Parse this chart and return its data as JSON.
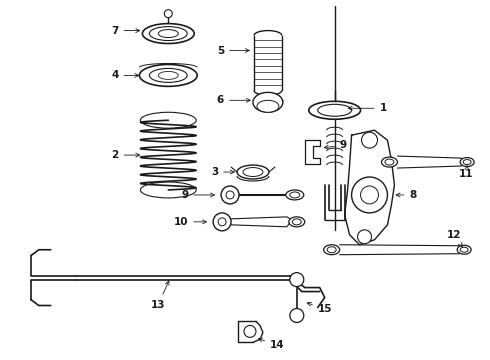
{
  "background_color": "#ffffff",
  "line_color": "#1a1a1a",
  "label_color": "#111111",
  "fig_width": 4.9,
  "fig_height": 3.6,
  "dpi": 100,
  "label_fontsize": 7.5,
  "arrow_lw": 0.6,
  "parts_lw": 0.8
}
